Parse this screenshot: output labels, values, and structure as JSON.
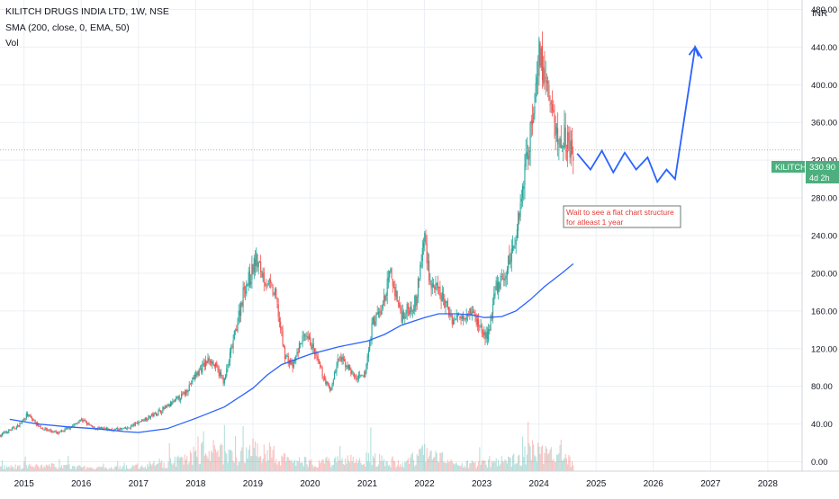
{
  "header": {
    "title": "KILITCH DRUGS INDIA LTD, 1W, NSE",
    "indicator": "SMA (200, close, 0, EMA, 50)",
    "volume": "Vol"
  },
  "currency": "INR",
  "price_label": {
    "symbol": "KILITCH",
    "price": "330.90",
    "countdown": "4d 2h"
  },
  "annotation": {
    "line1": "Wait to see a flat chart structure",
    "line2": "for atleast 1 year"
  },
  "colors": {
    "up": "#26a69a",
    "down": "#ef5350",
    "sma": "#2962ff",
    "forecast": "#2962ff",
    "grid": "#eceff3",
    "label_bg": "#4caf7d",
    "annotation": "#e53935"
  },
  "chart_data": {
    "type": "candlestick",
    "y_axis": {
      "min": -10,
      "max": 490,
      "ticks": [
        "0.00",
        "40.00",
        "80.00",
        "120.00",
        "160.00",
        "200.00",
        "240.00",
        "280.00",
        "320.00",
        "360.00",
        "400.00",
        "440.00",
        "480.00"
      ]
    },
    "x_axis": {
      "range": [
        2014.58,
        2028.6
      ],
      "ticks": [
        {
          "label": "2015",
          "value": 2015
        },
        {
          "label": "2016",
          "value": 2016
        },
        {
          "label": "2017",
          "value": 2017
        },
        {
          "label": "2018",
          "value": 2018
        },
        {
          "label": "2019",
          "value": 2019
        },
        {
          "label": "2020",
          "value": 2020
        },
        {
          "label": "2021",
          "value": 2021
        },
        {
          "label": "2022",
          "value": 2022
        },
        {
          "label": "2023",
          "value": 2023
        },
        {
          "label": "2024",
          "value": 2024
        },
        {
          "label": "2025",
          "value": 2025
        },
        {
          "label": "2026",
          "value": 2026
        },
        {
          "label": "2027",
          "value": 2027
        },
        {
          "label": "2028",
          "value": 2028
        }
      ]
    },
    "price_path": [
      [
        2014.58,
        28
      ],
      [
        2014.9,
        38
      ],
      [
        2015.05,
        50
      ],
      [
        2015.3,
        36
      ],
      [
        2015.6,
        30
      ],
      [
        2015.9,
        40
      ],
      [
        2016.0,
        45
      ],
      [
        2016.2,
        36
      ],
      [
        2016.5,
        34
      ],
      [
        2016.8,
        35
      ],
      [
        2017.0,
        42
      ],
      [
        2017.2,
        48
      ],
      [
        2017.5,
        58
      ],
      [
        2017.8,
        72
      ],
      [
        2018.0,
        92
      ],
      [
        2018.25,
        110
      ],
      [
        2018.5,
        85
      ],
      [
        2018.7,
        140
      ],
      [
        2018.85,
        185
      ],
      [
        2018.95,
        195
      ],
      [
        2019.05,
        215
      ],
      [
        2019.2,
        195
      ],
      [
        2019.4,
        175
      ],
      [
        2019.55,
        115
      ],
      [
        2019.7,
        100
      ],
      [
        2019.85,
        130
      ],
      [
        2020.0,
        128
      ],
      [
        2020.2,
        95
      ],
      [
        2020.35,
        75
      ],
      [
        2020.5,
        110
      ],
      [
        2020.65,
        102
      ],
      [
        2020.8,
        88
      ],
      [
        2020.95,
        90
      ],
      [
        2021.1,
        150
      ],
      [
        2021.25,
        160
      ],
      [
        2021.4,
        200
      ],
      [
        2021.6,
        155
      ],
      [
        2021.85,
        170
      ],
      [
        2022.0,
        240
      ],
      [
        2022.1,
        190
      ],
      [
        2022.3,
        175
      ],
      [
        2022.5,
        150
      ],
      [
        2022.8,
        162
      ],
      [
        2022.95,
        145
      ],
      [
        2023.1,
        130
      ],
      [
        2023.25,
        185
      ],
      [
        2023.4,
        195
      ],
      [
        2023.6,
        240
      ],
      [
        2023.75,
        310
      ],
      [
        2023.9,
        370
      ],
      [
        2024.0,
        440
      ],
      [
        2024.05,
        420
      ],
      [
        2024.2,
        380
      ],
      [
        2024.35,
        335
      ],
      [
        2024.45,
        350
      ],
      [
        2024.6,
        320
      ]
    ],
    "volume_level": [
      [
        2014.58,
        0.15
      ],
      [
        2015.5,
        0.2
      ],
      [
        2016.5,
        0.1
      ],
      [
        2017.5,
        0.3
      ],
      [
        2018.25,
        0.8
      ],
      [
        2018.8,
        0.6
      ],
      [
        2019.1,
        0.9
      ],
      [
        2019.6,
        0.4
      ],
      [
        2020.4,
        0.35
      ],
      [
        2021.1,
        0.5
      ],
      [
        2021.6,
        0.3
      ],
      [
        2022.0,
        0.7
      ],
      [
        2022.6,
        0.25
      ],
      [
        2023.2,
        0.3
      ],
      [
        2023.7,
        0.55
      ],
      [
        2024.0,
        0.9
      ],
      [
        2024.3,
        0.5
      ],
      [
        2024.6,
        0.4
      ]
    ],
    "sma_200": [
      [
        2014.75,
        45
      ],
      [
        2015.25,
        40
      ],
      [
        2015.75,
        37
      ],
      [
        2016.25,
        35
      ],
      [
        2016.75,
        32
      ],
      [
        2017.0,
        31
      ],
      [
        2017.5,
        35
      ],
      [
        2018.0,
        46
      ],
      [
        2018.5,
        58
      ],
      [
        2019.0,
        78
      ],
      [
        2019.25,
        92
      ],
      [
        2019.5,
        103
      ],
      [
        2020.0,
        114
      ],
      [
        2020.5,
        122
      ],
      [
        2021.0,
        128
      ],
      [
        2021.3,
        135
      ],
      [
        2021.6,
        145
      ],
      [
        2022.0,
        153
      ],
      [
        2022.25,
        157
      ],
      [
        2022.55,
        157
      ],
      [
        2022.8,
        156
      ],
      [
        2023.05,
        153
      ],
      [
        2023.35,
        154
      ],
      [
        2023.6,
        160
      ],
      [
        2023.85,
        172
      ],
      [
        2024.1,
        186
      ],
      [
        2024.4,
        200
      ],
      [
        2024.6,
        210
      ]
    ],
    "forecast": [
      [
        2024.67,
        327
      ],
      [
        2024.9,
        310
      ],
      [
        2025.1,
        330
      ],
      [
        2025.3,
        307
      ],
      [
        2025.5,
        328
      ],
      [
        2025.7,
        310
      ],
      [
        2025.9,
        323
      ],
      [
        2026.07,
        297
      ],
      [
        2026.23,
        310
      ],
      [
        2026.38,
        300
      ],
      [
        2026.73,
        440
      ],
      [
        2026.85,
        428
      ]
    ],
    "last_price": 330.9
  }
}
